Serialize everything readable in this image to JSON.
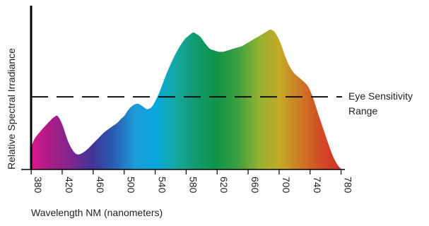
{
  "chart_data": {
    "type": "area",
    "title": "",
    "xlabel": "Wavelength NM (nanometers)",
    "ylabel": "Relative Spectral Irradiance",
    "xlim": [
      368,
      784
    ],
    "ylim": [
      0,
      1
    ],
    "x_ticks": [
      380,
      420,
      460,
      500,
      540,
      580,
      620,
      660,
      700,
      740,
      780
    ],
    "series": [
      {
        "x": [
          380,
          384,
          392,
          400,
          405,
          409,
          414,
          420,
          428,
          435,
          440,
          446,
          453,
          460,
          467,
          474,
          481,
          486,
          491,
          496,
          500,
          506,
          512,
          518,
          524,
          530,
          536,
          542,
          548,
          554,
          560,
          566,
          572,
          578,
          584,
          589,
          593,
          598,
          602,
          606,
          611,
          616,
          622,
          628,
          634,
          640,
          646,
          652,
          658,
          664,
          670,
          676,
          682,
          688,
          693,
          697,
          702,
          707,
          712,
          716,
          720,
          726,
          732,
          738,
          744,
          748,
          752,
          758,
          764,
          770,
          776,
          781
        ],
        "values": [
          0.16,
          0.22,
          0.28,
          0.33,
          0.36,
          0.38,
          0.39,
          0.33,
          0.2,
          0.13,
          0.11,
          0.12,
          0.15,
          0.19,
          0.23,
          0.27,
          0.3,
          0.32,
          0.34,
          0.37,
          0.39,
          0.44,
          0.47,
          0.48,
          0.46,
          0.44,
          0.46,
          0.52,
          0.6,
          0.69,
          0.77,
          0.84,
          0.9,
          0.95,
          0.98,
          1.0,
          0.99,
          0.97,
          0.94,
          0.91,
          0.88,
          0.87,
          0.86,
          0.86,
          0.87,
          0.88,
          0.89,
          0.9,
          0.92,
          0.94,
          0.96,
          0.98,
          1.0,
          1.02,
          1.01,
          0.98,
          0.92,
          0.84,
          0.77,
          0.73,
          0.7,
          0.67,
          0.64,
          0.6,
          0.52,
          0.45,
          0.38,
          0.28,
          0.18,
          0.09,
          0.03,
          0.0
        ]
      }
    ],
    "reference_line": {
      "value": 0.53,
      "style": "dashed"
    },
    "annotation": {
      "line1": "Eye Sensitivity",
      "line2": "Range"
    },
    "gradient_colors": [
      "#d9168a",
      "#a51e88",
      "#7a278e",
      "#3f3597",
      "#2a5db3",
      "#1e9bd6",
      "#07a7de",
      "#16a8a0",
      "#119a6b",
      "#119449",
      "#3fa13f",
      "#93b231",
      "#c4aa25",
      "#cc7a27",
      "#d44a26",
      "#cf2e24"
    ],
    "axis_color": "#000000",
    "dash_color": "#111111"
  }
}
